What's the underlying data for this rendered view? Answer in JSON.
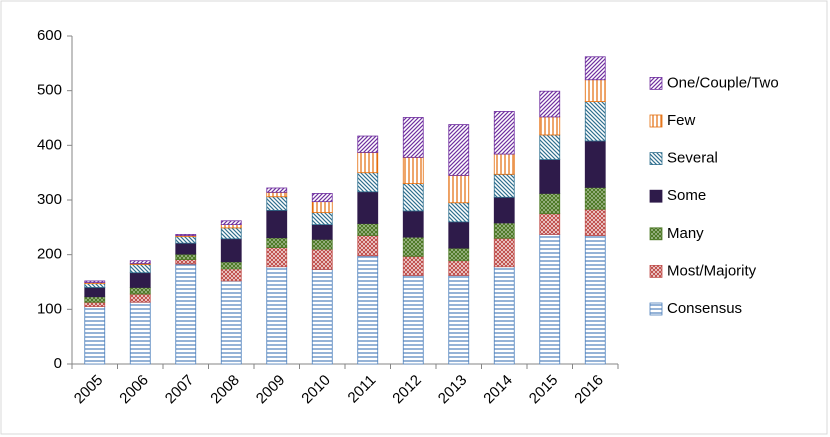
{
  "chart_data": {
    "type": "stacked-bar",
    "categories": [
      "2005",
      "2006",
      "2007",
      "2008",
      "2009",
      "2010",
      "2011",
      "2012",
      "2013",
      "2014",
      "2015",
      "2016"
    ],
    "series": [
      {
        "name": "Consensus",
        "color": "#4f81bd",
        "values": [
          105,
          113,
          183,
          152,
          178,
          173,
          198,
          162,
          162,
          178,
          237,
          235
        ]
      },
      {
        "name": "Most/Majority",
        "color": "#c0504d",
        "values": [
          8,
          15,
          8,
          22,
          35,
          37,
          37,
          35,
          27,
          52,
          38,
          48
        ]
      },
      {
        "name": "Many",
        "color": "#4f7a28",
        "values": [
          10,
          12,
          10,
          13,
          18,
          18,
          22,
          35,
          23,
          28,
          37,
          40
        ]
      },
      {
        "name": "Some",
        "color": "#2e1b4a",
        "values": [
          17,
          27,
          20,
          42,
          50,
          27,
          58,
          48,
          48,
          47,
          62,
          85
        ]
      },
      {
        "name": "Several",
        "color": "#31708f",
        "values": [
          7,
          15,
          12,
          20,
          25,
          22,
          35,
          50,
          35,
          42,
          45,
          72
        ]
      },
      {
        "name": "Few",
        "color": "#e46c0a",
        "values": [
          2,
          2,
          2,
          6,
          8,
          20,
          37,
          48,
          50,
          37,
          33,
          40
        ]
      },
      {
        "name": "One/Couple/Two",
        "color": "#7030a0",
        "values": [
          3,
          5,
          2,
          7,
          8,
          15,
          30,
          73,
          93,
          78,
          47,
          42
        ]
      }
    ],
    "ylim": [
      0,
      600
    ],
    "yticks": [
      0,
      100,
      200,
      300,
      400,
      500,
      600
    ],
    "grid": false,
    "legend": "right"
  }
}
